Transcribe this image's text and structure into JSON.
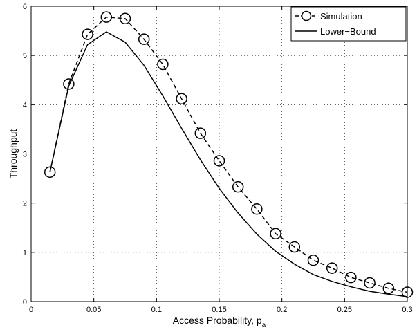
{
  "chart_data": {
    "type": "line",
    "xlabel": "Access Probability, p",
    "xlabel_subscript": "a",
    "ylabel": "Throughput",
    "xlim": [
      0,
      0.3
    ],
    "ylim": [
      0,
      6
    ],
    "grid": true,
    "legend_position": "top-right",
    "xticks": [
      0,
      0.05,
      0.1,
      0.15,
      0.2,
      0.25,
      0.3
    ],
    "xtick_labels": [
      "0",
      "0.05",
      "0.1",
      "0.15",
      "0.2",
      "0.25",
      "0.3"
    ],
    "yticks": [
      0,
      1,
      2,
      3,
      4,
      5,
      6
    ],
    "ytick_labels": [
      "0",
      "1",
      "2",
      "3",
      "4",
      "5",
      "6"
    ],
    "series": [
      {
        "name": "Simulation",
        "style": "dashed-circle",
        "x": [
          0.015,
          0.03,
          0.045,
          0.06,
          0.075,
          0.09,
          0.105,
          0.12,
          0.135,
          0.15,
          0.165,
          0.18,
          0.195,
          0.21,
          0.225,
          0.24,
          0.255,
          0.27,
          0.285,
          0.3
        ],
        "y": [
          2.63,
          4.42,
          5.43,
          5.78,
          5.75,
          5.33,
          4.82,
          4.12,
          3.42,
          2.86,
          2.33,
          1.88,
          1.38,
          1.11,
          0.84,
          0.68,
          0.49,
          0.38,
          0.27,
          0.19
        ]
      },
      {
        "name": "Lower−Bound",
        "style": "solid",
        "x": [
          0.015,
          0.03,
          0.045,
          0.06,
          0.075,
          0.09,
          0.105,
          0.12,
          0.135,
          0.15,
          0.165,
          0.18,
          0.195,
          0.21,
          0.225,
          0.24,
          0.255,
          0.27,
          0.285,
          0.3
        ],
        "y": [
          2.63,
          4.38,
          5.22,
          5.48,
          5.27,
          4.8,
          4.18,
          3.52,
          2.88,
          2.3,
          1.8,
          1.37,
          1.02,
          0.76,
          0.55,
          0.41,
          0.3,
          0.21,
          0.15,
          0.1
        ]
      }
    ]
  },
  "colors": {
    "line": "#000000",
    "grid": "#000000",
    "background": "#ffffff"
  }
}
